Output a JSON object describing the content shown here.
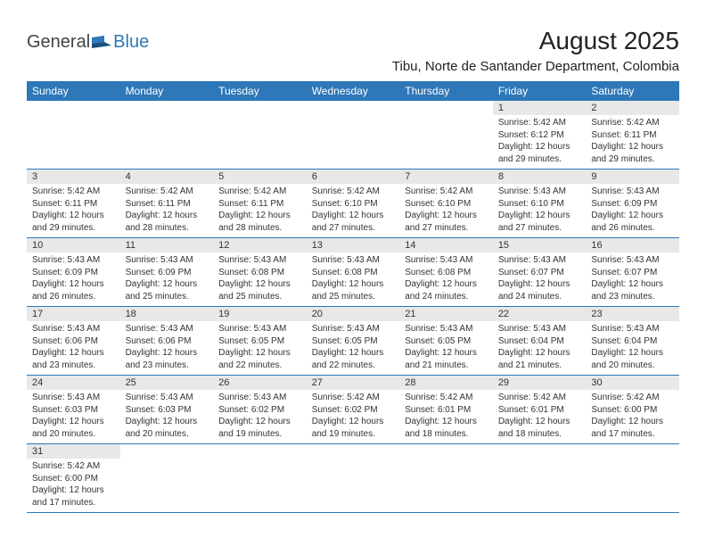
{
  "logo": {
    "part1": "General",
    "part2": "Blue"
  },
  "title": "August 2025",
  "location": "Tibu, Norte de Santander Department, Colombia",
  "colors": {
    "header_bg": "#2e77b8",
    "header_text": "#ffffff",
    "daynum_bg": "#e8e8e8",
    "border": "#2e77b8",
    "text": "#333333",
    "logo_blue": "#2e77b8"
  },
  "weekdays": [
    "Sunday",
    "Monday",
    "Tuesday",
    "Wednesday",
    "Thursday",
    "Friday",
    "Saturday"
  ],
  "first_weekday_index": 5,
  "days": [
    {
      "n": 1,
      "sunrise": "5:42 AM",
      "sunset": "6:12 PM",
      "daylight": "12 hours and 29 minutes."
    },
    {
      "n": 2,
      "sunrise": "5:42 AM",
      "sunset": "6:11 PM",
      "daylight": "12 hours and 29 minutes."
    },
    {
      "n": 3,
      "sunrise": "5:42 AM",
      "sunset": "6:11 PM",
      "daylight": "12 hours and 29 minutes."
    },
    {
      "n": 4,
      "sunrise": "5:42 AM",
      "sunset": "6:11 PM",
      "daylight": "12 hours and 28 minutes."
    },
    {
      "n": 5,
      "sunrise": "5:42 AM",
      "sunset": "6:11 PM",
      "daylight": "12 hours and 28 minutes."
    },
    {
      "n": 6,
      "sunrise": "5:42 AM",
      "sunset": "6:10 PM",
      "daylight": "12 hours and 27 minutes."
    },
    {
      "n": 7,
      "sunrise": "5:42 AM",
      "sunset": "6:10 PM",
      "daylight": "12 hours and 27 minutes."
    },
    {
      "n": 8,
      "sunrise": "5:43 AM",
      "sunset": "6:10 PM",
      "daylight": "12 hours and 27 minutes."
    },
    {
      "n": 9,
      "sunrise": "5:43 AM",
      "sunset": "6:09 PM",
      "daylight": "12 hours and 26 minutes."
    },
    {
      "n": 10,
      "sunrise": "5:43 AM",
      "sunset": "6:09 PM",
      "daylight": "12 hours and 26 minutes."
    },
    {
      "n": 11,
      "sunrise": "5:43 AM",
      "sunset": "6:09 PM",
      "daylight": "12 hours and 25 minutes."
    },
    {
      "n": 12,
      "sunrise": "5:43 AM",
      "sunset": "6:08 PM",
      "daylight": "12 hours and 25 minutes."
    },
    {
      "n": 13,
      "sunrise": "5:43 AM",
      "sunset": "6:08 PM",
      "daylight": "12 hours and 25 minutes."
    },
    {
      "n": 14,
      "sunrise": "5:43 AM",
      "sunset": "6:08 PM",
      "daylight": "12 hours and 24 minutes."
    },
    {
      "n": 15,
      "sunrise": "5:43 AM",
      "sunset": "6:07 PM",
      "daylight": "12 hours and 24 minutes."
    },
    {
      "n": 16,
      "sunrise": "5:43 AM",
      "sunset": "6:07 PM",
      "daylight": "12 hours and 23 minutes."
    },
    {
      "n": 17,
      "sunrise": "5:43 AM",
      "sunset": "6:06 PM",
      "daylight": "12 hours and 23 minutes."
    },
    {
      "n": 18,
      "sunrise": "5:43 AM",
      "sunset": "6:06 PM",
      "daylight": "12 hours and 23 minutes."
    },
    {
      "n": 19,
      "sunrise": "5:43 AM",
      "sunset": "6:05 PM",
      "daylight": "12 hours and 22 minutes."
    },
    {
      "n": 20,
      "sunrise": "5:43 AM",
      "sunset": "6:05 PM",
      "daylight": "12 hours and 22 minutes."
    },
    {
      "n": 21,
      "sunrise": "5:43 AM",
      "sunset": "6:05 PM",
      "daylight": "12 hours and 21 minutes."
    },
    {
      "n": 22,
      "sunrise": "5:43 AM",
      "sunset": "6:04 PM",
      "daylight": "12 hours and 21 minutes."
    },
    {
      "n": 23,
      "sunrise": "5:43 AM",
      "sunset": "6:04 PM",
      "daylight": "12 hours and 20 minutes."
    },
    {
      "n": 24,
      "sunrise": "5:43 AM",
      "sunset": "6:03 PM",
      "daylight": "12 hours and 20 minutes."
    },
    {
      "n": 25,
      "sunrise": "5:43 AM",
      "sunset": "6:03 PM",
      "daylight": "12 hours and 20 minutes."
    },
    {
      "n": 26,
      "sunrise": "5:43 AM",
      "sunset": "6:02 PM",
      "daylight": "12 hours and 19 minutes."
    },
    {
      "n": 27,
      "sunrise": "5:42 AM",
      "sunset": "6:02 PM",
      "daylight": "12 hours and 19 minutes."
    },
    {
      "n": 28,
      "sunrise": "5:42 AM",
      "sunset": "6:01 PM",
      "daylight": "12 hours and 18 minutes."
    },
    {
      "n": 29,
      "sunrise": "5:42 AM",
      "sunset": "6:01 PM",
      "daylight": "12 hours and 18 minutes."
    },
    {
      "n": 30,
      "sunrise": "5:42 AM",
      "sunset": "6:00 PM",
      "daylight": "12 hours and 17 minutes."
    },
    {
      "n": 31,
      "sunrise": "5:42 AM",
      "sunset": "6:00 PM",
      "daylight": "12 hours and 17 minutes."
    }
  ],
  "labels": {
    "sunrise": "Sunrise:",
    "sunset": "Sunset:",
    "daylight": "Daylight:"
  }
}
